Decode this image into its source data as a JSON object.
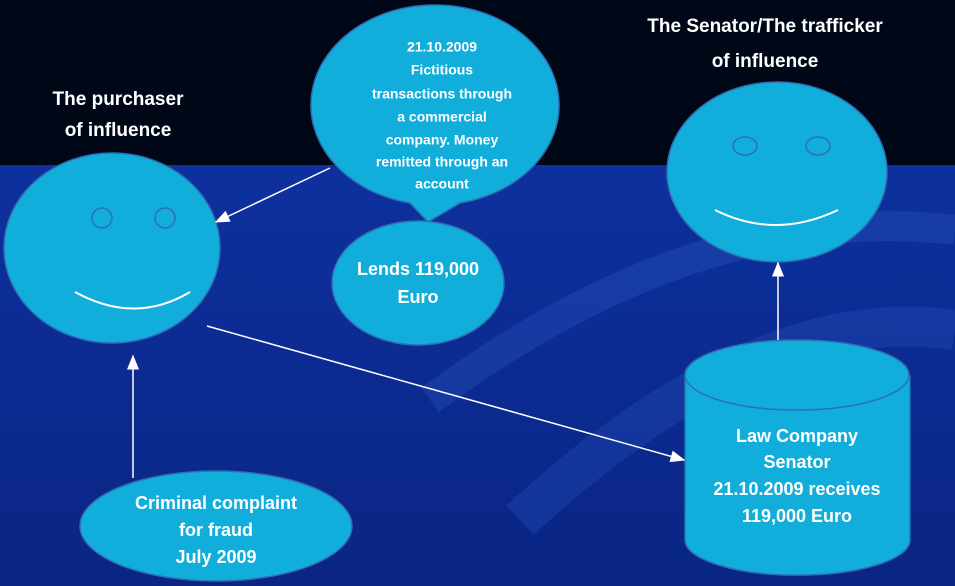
{
  "labels": {
    "purchaser": [
      "The purchaser",
      "of influence"
    ],
    "senator": [
      "The Senator/The trafficker",
      "of influence"
    ]
  },
  "bubble": [
    "21.10.2009",
    "Fictitious",
    "transactions through",
    "a commercial",
    "company. Money",
    "remitted through an",
    "account"
  ],
  "loan": [
    "Lends 119,000",
    "Euro"
  ],
  "company": [
    "Law Company",
    "Senator",
    "21.10.2009 receives",
    "119,000 Euro"
  ],
  "complaint": [
    "Criminal complaint",
    "for fraud",
    "July 2009"
  ]
}
